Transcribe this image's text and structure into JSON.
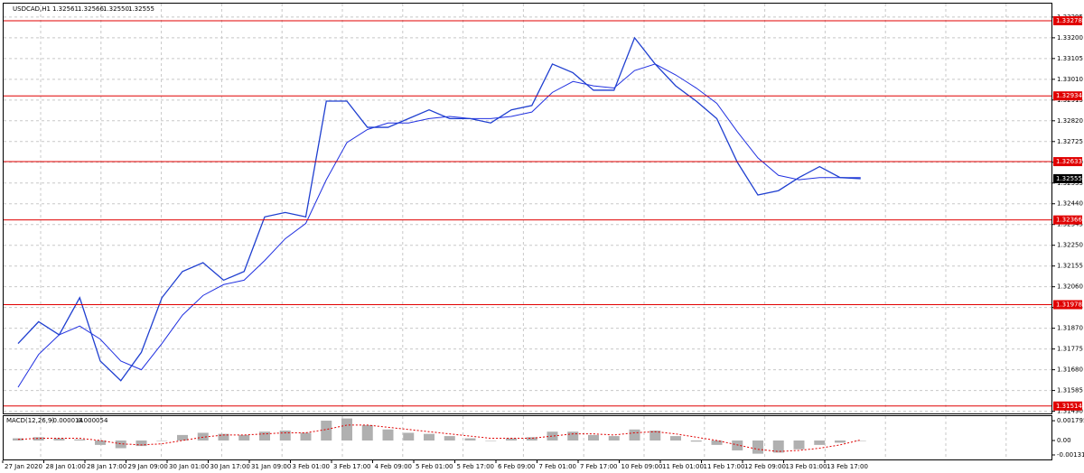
{
  "chart_data": [
    {
      "type": "line",
      "title": "USDCAD,H1",
      "quote": [
        "1.32561",
        "1.32566",
        "1.32550",
        "1.32555"
      ],
      "categories": [
        "27 Jan 2020",
        null,
        "28 Jan 01:00",
        null,
        "28 Jan 17:00",
        null,
        "29 Jan 09:00",
        null,
        "30 Jan 01:00",
        null,
        "30 Jan 17:00",
        null,
        "31 Jan 09:00",
        null,
        "3 Feb 01:00",
        null,
        "3 Feb 17:00",
        null,
        "4 Feb 09:00",
        null,
        "5 Feb 01:00",
        null,
        "5 Feb 17:00",
        null,
        "6 Feb 09:00",
        null,
        "7 Feb 01:00",
        null,
        "7 Feb 17:00",
        null,
        "10 Feb 09:00",
        null,
        "11 Feb 01:00",
        null,
        "11 Feb 17:00",
        null,
        "12 Feb 09:00",
        null,
        "13 Feb 01:00",
        null,
        "13 Feb 17:00",
        null
      ],
      "series": [
        {
          "color": "#1f3fd0",
          "values": [
            1.318,
            1.319,
            1.3184,
            1.3201,
            1.3172,
            1.3163,
            1.3176,
            1.3201,
            1.3213,
            1.3217,
            1.3209,
            1.3213,
            1.3238,
            1.324,
            1.3238,
            1.3291,
            1.3291,
            1.3279,
            1.3279,
            1.3283,
            1.3287,
            1.3283,
            1.3283,
            1.3281,
            1.3287,
            1.3289,
            1.3308,
            1.3304,
            1.3296,
            1.3296,
            1.332,
            1.3308,
            1.3298,
            1.3291,
            1.3283,
            1.3263,
            1.3248,
            1.325,
            1.3256,
            1.3261,
            1.3256,
            1.32555
          ]
        },
        {
          "color": "#2030e0",
          "values": [
            1.316,
            1.3175,
            1.3184,
            1.3188,
            1.3182,
            1.3172,
            1.3168,
            1.318,
            1.3193,
            1.3202,
            1.3207,
            1.3209,
            1.3218,
            1.3228,
            1.3235,
            1.3255,
            1.3272,
            1.3278,
            1.3281,
            1.3281,
            1.3283,
            1.3284,
            1.3283,
            1.3283,
            1.3284,
            1.3286,
            1.3295,
            1.33,
            1.3298,
            1.3297,
            1.3305,
            1.3308,
            1.3303,
            1.3297,
            1.329,
            1.3277,
            1.3265,
            1.3257,
            1.3255,
            1.3256,
            1.3256,
            1.3256
          ]
        }
      ],
      "levels": [
        1.33278,
        1.32934,
        1.32633,
        1.32366,
        1.31978,
        1.31514
      ],
      "level_color": "#e00000",
      "current_price": 1.32555,
      "ylim": [
        1.3148,
        1.3334
      ],
      "yticks": [
        {
          "value": 1.3149,
          "label": "1.31490"
        },
        1.31585,
        {
          "value": 1.3168,
          "label": "1.31680"
        },
        1.31775,
        {
          "value": 1.3187,
          "label": "1.31870"
        },
        1.31965,
        {
          "value": 1.3206,
          "label": "1.32060"
        },
        1.32155,
        {
          "value": 1.3225,
          "label": "1.32250"
        },
        1.32345,
        {
          "value": 1.3244,
          "label": "1.32440"
        },
        1.32535,
        {
          "value": 1.3263,
          "label": "1.32630"
        },
        1.32725,
        {
          "value": 1.3282,
          "label": "1.32820"
        },
        1.32915,
        {
          "value": 1.3301,
          "label": "1.33010"
        },
        1.33105,
        {
          "value": 1.332,
          "label": "1.33200"
        },
        1.33295
      ],
      "grid": true
    },
    {
      "type": "macd",
      "title": "MACD(12,26,9)",
      "last": [
        -1.4e-05,
        5.4e-05
      ],
      "series": [
        {
          "color": "#b0b0b0",
          "values": [
            0.0002,
            0.0003,
            0.0002,
            0.0001,
            -0.0004,
            -0.0007,
            -0.0005,
            0.0,
            0.0005,
            0.0007,
            0.0006,
            0.0005,
            0.0008,
            0.0009,
            0.0007,
            0.0018,
            0.002,
            0.0014,
            0.001,
            0.0007,
            0.0006,
            0.0004,
            0.0002,
            0.0,
            0.0002,
            0.0003,
            0.0008,
            0.0008,
            0.0005,
            0.0004,
            0.001,
            0.0009,
            0.0004,
            -0.0001,
            -0.0004,
            -0.0009,
            -0.0012,
            -0.0011,
            -0.0008,
            -0.0004,
            -0.0002,
            -1.4e-05
          ]
        },
        {
          "color": "#e00000",
          "values": [
            0.0001,
            0.0002,
            0.0002,
            0.0002,
            0.0,
            -0.0003,
            -0.0004,
            -0.0003,
            0.0,
            0.0003,
            0.0005,
            0.0005,
            0.0006,
            0.0007,
            0.0007,
            0.001,
            0.0014,
            0.0014,
            0.0012,
            0.001,
            0.0008,
            0.0006,
            0.0004,
            0.0002,
            0.0002,
            0.0002,
            0.0004,
            0.0006,
            0.0006,
            0.0005,
            0.0007,
            0.0008,
            0.0006,
            0.0003,
            0.0,
            -0.0004,
            -0.0008,
            -0.001,
            -0.0009,
            -0.0007,
            -0.0004,
            5.4e-05
          ]
        }
      ],
      "ylim": [
        -0.00164,
        0.00213
      ],
      "yticks": [
        0.001795,
        {
          "value": 0,
          "label": "0.00"
        },
        -0.001311
      ]
    }
  ]
}
